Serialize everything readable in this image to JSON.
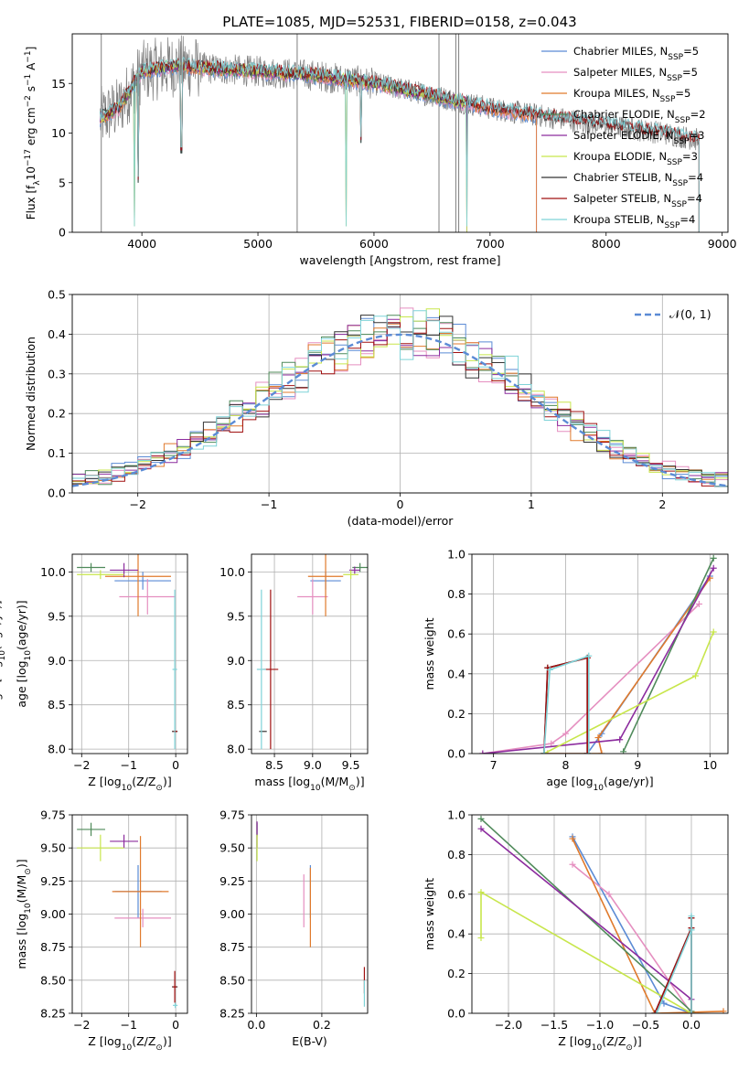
{
  "figure": {
    "title": "PLATE=1085, MJD=52531, FIBERID=0158, z=0.043"
  },
  "model_colors": [
    "#5b8bd5",
    "#e58fc0",
    "#e07a2c",
    "#4f8a5a",
    "#8c2c9e",
    "#c8e64c",
    "#333333",
    "#a01010",
    "#7fd3d8"
  ],
  "data_color": "#7f7f7f",
  "legend_spectrum": [
    {
      "text": "Chabrier MILES, N",
      "sub": "SSP",
      "tail": "=5"
    },
    {
      "text": "Salpeter MILES, N",
      "sub": "SSP",
      "tail": "=5"
    },
    {
      "text": "Kroupa MILES, N",
      "sub": "SSP",
      "tail": "=5"
    },
    {
      "text": "Chabrier ELODIE, N",
      "sub": "SSP",
      "tail": "=2"
    },
    {
      "text": "Salpeter ELODIE, N",
      "sub": "SSP",
      "tail": "=3"
    },
    {
      "text": "Kroupa ELODIE, N",
      "sub": "SSP",
      "tail": "=3"
    },
    {
      "text": "Chabrier STELIB, N",
      "sub": "SSP",
      "tail": "=4"
    },
    {
      "text": "Salpeter STELIB, N",
      "sub": "SSP",
      "tail": "=4"
    },
    {
      "text": "Kroupa STELIB, N",
      "sub": "SSP",
      "tail": "=4"
    }
  ],
  "chart_data": [
    {
      "id": "spectrum",
      "type": "line",
      "xlabel": "wavelength [Angstrom, rest frame]",
      "ylabel_pre": "Flux [f",
      "ylabel_sub": "λ",
      "ylabel_mid": "10",
      "ylabel_sup1": "−17",
      "ylabel_mid2": " erg cm",
      "ylabel_sup2": "−2",
      "ylabel_mid3": " s",
      "ylabel_sup3": "−1",
      "ylabel_mid4": " A",
      "ylabel_sup4": "−1",
      "ylabel_end": "]",
      "xlim": [
        3400,
        9050
      ],
      "ylim": [
        0,
        20
      ],
      "xticks": [
        4000,
        5000,
        6000,
        7000,
        8000,
        9000
      ],
      "yticks": [
        0,
        5,
        10,
        15
      ],
      "grid": false,
      "legend_position": "upper-right",
      "continuum": {
        "x": [
          3640,
          3800,
          4000,
          4300,
          4600,
          5000,
          5500,
          6000,
          6500,
          7000,
          7400,
          8000,
          8500,
          8800
        ],
        "y": [
          11.5,
          12.5,
          16.2,
          16.8,
          16.5,
          16.2,
          15.8,
          15.0,
          13.8,
          12.5,
          11.8,
          10.8,
          10.0,
          9.3
        ]
      },
      "model_end_wavelength": {
        "MILES": 7400,
        "ELODIE": 6800,
        "STELIB": 8800
      },
      "data_spikes_x": [
        3650,
        5338,
        6560,
        6705,
        6730
      ],
      "absorption_dips": [
        [
          3934,
          0
        ],
        [
          3970,
          5
        ],
        [
          4340,
          8
        ],
        [
          5890,
          9
        ],
        [
          5760,
          0
        ],
        [
          6800,
          0
        ]
      ]
    },
    {
      "id": "residuals",
      "type": "histogram",
      "xlabel": "(data-model)/error",
      "ylabel": "Normed distribution",
      "xlim": [
        -2.5,
        2.5
      ],
      "ylim": [
        0,
        0.5
      ],
      "xticks": [
        -2,
        -1,
        0,
        1,
        2
      ],
      "yticks": [
        0,
        0.1,
        0.2,
        0.3,
        0.4,
        0.5
      ],
      "grid": true,
      "legend_position": "upper-right",
      "legend_label": "𝒩(0, 1)",
      "bin_width": 0.1,
      "gaussian": {
        "mean": 0,
        "sigma": 1
      }
    },
    {
      "id": "age-vs-Z",
      "type": "errorbar",
      "xlabel_pre": "Z [log",
      "xlabel_sub": "10",
      "xlabel_end": "(Z/Z",
      "xlabel_sun": "⊙",
      "xlabel_close": ")]",
      "ylabel_pre": "age  [log",
      "ylabel_sub": "10",
      "ylabel_end": "(age/yr)]",
      "xlim": [
        -2.2,
        0.25
      ],
      "ylim": [
        7.95,
        10.2
      ],
      "xticks": [
        -2,
        -1,
        0
      ],
      "yticks": [
        8.0,
        8.5,
        9.0,
        9.5,
        10.0
      ],
      "points": [
        {
          "model": 0,
          "x": -0.7,
          "xerr": 0.6,
          "y": 9.9,
          "yerr": 0.1
        },
        {
          "model": 1,
          "x": -0.6,
          "xerr": 0.6,
          "y": 9.72,
          "yerr": 0.2
        },
        {
          "model": 2,
          "x": -0.8,
          "xerr": 0.7,
          "y": 9.95,
          "yerr": 0.45
        },
        {
          "model": 3,
          "x": -1.8,
          "xerr": 0.3,
          "y": 10.05,
          "yerr": 0.05
        },
        {
          "model": 4,
          "x": -1.1,
          "xerr": 0.3,
          "y": 10.02,
          "yerr": 0.08
        },
        {
          "model": 5,
          "x": -1.6,
          "xerr": 0.5,
          "y": 9.97,
          "yerr": 0.05
        },
        {
          "model": 6,
          "x": -0.02,
          "xerr": 0.06,
          "y": 8.2,
          "yerr": 0.0
        },
        {
          "model": 7,
          "x": -0.01,
          "xerr": 0.04,
          "y": 8.2,
          "yerr": 0.01
        },
        {
          "model": 8,
          "x": -0.02,
          "xerr": 0.05,
          "y": 8.9,
          "yerr": 0.9
        }
      ]
    },
    {
      "id": "age-vs-mass",
      "type": "errorbar",
      "xlabel_pre": "mass [log",
      "xlabel_sub": "10",
      "xlabel_end": "(M/M",
      "xlabel_sun": "⊙",
      "xlabel_close": ")]",
      "ylabel_pre": "age  [log",
      "ylabel_sub": "10",
      "ylabel_end": "(age/yr)]",
      "xlim": [
        8.2,
        9.72
      ],
      "ylim": [
        7.95,
        10.2
      ],
      "xticks": [
        8.5,
        9.0,
        9.5
      ],
      "yticks": [
        8.0,
        8.5,
        9.0,
        9.5,
        10.0
      ],
      "points": [
        {
          "model": 0,
          "x": 9.17,
          "xerr": 0.2,
          "y": 9.9,
          "yerr": 0.1
        },
        {
          "model": 1,
          "x": 9.0,
          "xerr": 0.2,
          "y": 9.72,
          "yerr": 0.2
        },
        {
          "model": 2,
          "x": 9.17,
          "xerr": 0.23,
          "y": 9.95,
          "yerr": 0.45
        },
        {
          "model": 3,
          "x": 9.62,
          "xerr": 0.1,
          "y": 10.05,
          "yerr": 0.05
        },
        {
          "model": 4,
          "x": 9.55,
          "xerr": 0.07,
          "y": 10.02,
          "yerr": 0.04
        },
        {
          "model": 5,
          "x": 9.5,
          "xerr": 0.1,
          "y": 9.97,
          "yerr": 0.05
        },
        {
          "model": 6,
          "x": 8.35,
          "xerr": 0.05,
          "y": 8.2,
          "yerr": 0.0
        },
        {
          "model": 7,
          "x": 8.45,
          "xerr": 0.1,
          "y": 8.9,
          "yerr": 0.9
        },
        {
          "model": 8,
          "x": 8.33,
          "xerr": 0.06,
          "y": 8.9,
          "yerr": 0.9
        }
      ]
    },
    {
      "id": "mass-weight-vs-age",
      "type": "line",
      "xlabel_pre": "age  [log",
      "xlabel_sub": "10",
      "xlabel_end": "(age/yr)]",
      "ylabel": "mass weight",
      "xlim": [
        6.7,
        10.25
      ],
      "ylim": [
        0,
        1
      ],
      "xticks": [
        7,
        8,
        9,
        10
      ],
      "yticks": [
        0.0,
        0.2,
        0.4,
        0.6,
        0.8,
        1.0
      ],
      "grid": true,
      "series": [
        {
          "model": 0,
          "x": [
            7.7,
            8.3,
            8.5,
            10.0
          ],
          "y": [
            0.0,
            0.0,
            0.1,
            0.89
          ]
        },
        {
          "model": 1,
          "x": [
            6.85,
            7.8,
            8.0,
            9.85
          ],
          "y": [
            0.0,
            0.05,
            0.1,
            0.75
          ]
        },
        {
          "model": 2,
          "x": [
            7.75,
            8.5,
            8.45,
            10.0
          ],
          "y": [
            0.0,
            0.0,
            0.08,
            0.88
          ]
        },
        {
          "model": 3,
          "x": [
            8.8,
            10.05
          ],
          "y": [
            0.01,
            0.98
          ]
        },
        {
          "model": 4,
          "x": [
            6.85,
            8.75,
            10.05
          ],
          "y": [
            0.0,
            0.07,
            0.93
          ]
        },
        {
          "model": 5,
          "x": [
            7.7,
            9.8,
            10.05
          ],
          "y": [
            0.0,
            0.39,
            0.61
          ]
        },
        {
          "model": 6,
          "x": [
            7.7,
            7.75,
            8.3,
            8.3
          ],
          "y": [
            0.0,
            0.43,
            0.48,
            0.0
          ]
        },
        {
          "model": 7,
          "x": [
            7.7,
            7.75,
            8.3,
            8.3
          ],
          "y": [
            0.0,
            0.43,
            0.48,
            0.0
          ]
        },
        {
          "model": 8,
          "x": [
            7.7,
            7.78,
            8.32,
            8.32
          ],
          "y": [
            0.0,
            0.42,
            0.49,
            0.0
          ]
        }
      ]
    },
    {
      "id": "mass-vs-Z",
      "type": "errorbar",
      "xlabel_pre": "Z [log",
      "xlabel_sub": "10",
      "xlabel_end": "(Z/Z",
      "xlabel_sun": "⊙",
      "xlabel_close": ")]",
      "ylabel_pre": "mass [log",
      "ylabel_sub": "10",
      "ylabel_end": "(M/M",
      "ylabel_sun": "⊙",
      "ylabel_close": ")]",
      "xlim": [
        -2.2,
        0.25
      ],
      "ylim": [
        8.25,
        9.75
      ],
      "xticks": [
        -2,
        -1,
        0
      ],
      "yticks": [
        8.25,
        8.5,
        8.75,
        9.0,
        9.25,
        9.5,
        9.75
      ],
      "points": [
        {
          "model": 0,
          "x": -0.8,
          "xerr": 0.5,
          "y": 9.17,
          "yerr": 0.2
        },
        {
          "model": 1,
          "x": -0.7,
          "xerr": 0.6,
          "y": 8.97,
          "yerr": 0.07
        },
        {
          "model": 2,
          "x": -0.75,
          "xerr": 0.6,
          "y": 9.17,
          "yerr": 0.42
        },
        {
          "model": 3,
          "x": -1.8,
          "xerr": 0.3,
          "y": 9.64,
          "yerr": 0.05
        },
        {
          "model": 4,
          "x": -1.1,
          "xerr": 0.3,
          "y": 9.55,
          "yerr": 0.05
        },
        {
          "model": 5,
          "x": -1.6,
          "xerr": 0.5,
          "y": 9.5,
          "yerr": 0.1
        },
        {
          "model": 6,
          "x": -0.02,
          "xerr": 0.06,
          "y": 8.45,
          "yerr": 0.0
        },
        {
          "model": 7,
          "x": -0.02,
          "xerr": 0.04,
          "y": 8.45,
          "yerr": 0.12
        },
        {
          "model": 8,
          "x": -0.01,
          "xerr": 0.05,
          "y": 8.31,
          "yerr": 0.02
        }
      ]
    },
    {
      "id": "mass-vs-ebv",
      "type": "errorbar",
      "xlabel": "E(B-V)",
      "ylabel": "",
      "xlim": [
        -0.015,
        0.34
      ],
      "ylim": [
        8.25,
        9.75
      ],
      "xticks": [
        0.0,
        0.2
      ],
      "yticks": [
        8.25,
        8.5,
        8.75,
        9.0,
        9.25,
        9.5,
        9.75
      ],
      "points": [
        {
          "model": 0,
          "x": 0.165,
          "xerr": 0.0,
          "y": 9.17,
          "yerr": 0.2
        },
        {
          "model": 1,
          "x": 0.145,
          "xerr": 0.0,
          "y": 9.1,
          "yerr": 0.2
        },
        {
          "model": 2,
          "x": 0.165,
          "xerr": 0.0,
          "y": 9.05,
          "yerr": 0.3
        },
        {
          "model": 3,
          "x": 0.002,
          "xerr": 0.0,
          "y": 9.64,
          "yerr": 0.05
        },
        {
          "model": 4,
          "x": 0.002,
          "xerr": 0.0,
          "y": 9.6,
          "yerr": 0.1
        },
        {
          "model": 5,
          "x": 0.002,
          "xerr": 0.0,
          "y": 9.5,
          "yerr": 0.1
        },
        {
          "model": 6,
          "x": 0.33,
          "xerr": 0.0,
          "y": 8.45,
          "yerr": 0.0
        },
        {
          "model": 7,
          "x": 0.33,
          "xerr": 0.0,
          "y": 8.5,
          "yerr": 0.1
        },
        {
          "model": 8,
          "x": 0.33,
          "xerr": 0.0,
          "y": 8.4,
          "yerr": 0.1
        }
      ]
    },
    {
      "id": "mass-weight-vs-Z",
      "type": "line",
      "xlabel_pre": "Z [log",
      "xlabel_sub": "10",
      "xlabel_end": "(Z/Z",
      "xlabel_sun": "⊙",
      "xlabel_close": ")]",
      "ylabel": "mass weight",
      "xlim": [
        -2.4,
        0.4
      ],
      "ylim": [
        0,
        1
      ],
      "xticks": [
        -2.0,
        -1.5,
        -1.0,
        -0.5,
        0.0
      ],
      "yticks": [
        0.0,
        0.2,
        0.4,
        0.6,
        0.8,
        1.0
      ],
      "grid": true,
      "series": [
        {
          "model": 0,
          "x": [
            -1.3,
            -0.3,
            0.0
          ],
          "y": [
            0.89,
            0.05,
            0.0
          ]
        },
        {
          "model": 1,
          "x": [
            -1.3,
            -0.9,
            0.0
          ],
          "y": [
            0.75,
            0.6,
            0.0
          ]
        },
        {
          "model": 2,
          "x": [
            -1.3,
            -0.4,
            0.35
          ],
          "y": [
            0.88,
            0.0,
            0.01
          ]
        },
        {
          "model": 3,
          "x": [
            -2.3,
            0.0
          ],
          "y": [
            0.98,
            0.01
          ]
        },
        {
          "model": 4,
          "x": [
            -2.3,
            0.0
          ],
          "y": [
            0.93,
            0.07
          ]
        },
        {
          "model": 5,
          "x": [
            -2.3,
            -2.3,
            0.0
          ],
          "y": [
            0.38,
            0.61,
            0.0
          ]
        },
        {
          "model": 6,
          "x": [
            -0.4,
            0.0,
            0.0,
            0.0
          ],
          "y": [
            0.0,
            0.43,
            0.48,
            0.0
          ]
        },
        {
          "model": 7,
          "x": [
            -0.4,
            0.0,
            0.0,
            0.0
          ],
          "y": [
            0.0,
            0.43,
            0.48,
            0.0
          ]
        },
        {
          "model": 8,
          "x": [
            -0.38,
            0.0,
            0.0,
            0.0
          ],
          "y": [
            0.0,
            0.42,
            0.49,
            0.0
          ]
        }
      ]
    }
  ]
}
